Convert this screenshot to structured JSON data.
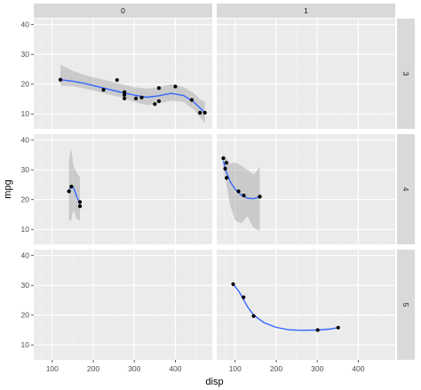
{
  "chart_data": {
    "type": "scatter",
    "subtype": "facet_grid scatter with loess smooth and confidence band",
    "xlabel": "disp",
    "ylabel": "mpg",
    "xlim": [
      55,
      490
    ],
    "ylim": [
      5,
      42
    ],
    "x_ticks": [
      100,
      200,
      300,
      400
    ],
    "y_ticks": [
      10,
      20,
      30,
      40
    ],
    "facet_cols": {
      "variable": "am",
      "levels": [
        "0",
        "1"
      ]
    },
    "facet_rows": {
      "variable": "gear",
      "levels": [
        "3",
        "4",
        "5"
      ]
    },
    "grid": true,
    "colors": {
      "panel_bg": "#ebebeb",
      "grid_major": "#ffffff",
      "grid_minor": "#f4f4f4",
      "strip_bg": "#d9d9d9",
      "points": "#000000",
      "smooth": "#3366ff",
      "ribbon": "#999999"
    },
    "panels": [
      {
        "col": "0",
        "row": "3",
        "points": [
          [
            120,
            21.5
          ],
          [
            225,
            18.1
          ],
          [
            258,
            21.4
          ],
          [
            276,
            17.3
          ],
          [
            276,
            16.4
          ],
          [
            276,
            15.2
          ],
          [
            304,
            15.2
          ],
          [
            318,
            15.5
          ],
          [
            350,
            13.3
          ],
          [
            360,
            14.3
          ],
          [
            360,
            18.7
          ],
          [
            400,
            19.2
          ],
          [
            440,
            14.7
          ],
          [
            460,
            10.4
          ],
          [
            472,
            10.4
          ]
        ],
        "smooth": [
          [
            120,
            21.5
          ],
          [
            150,
            21.0
          ],
          [
            180,
            20.2
          ],
          [
            210,
            19.2
          ],
          [
            240,
            18.2
          ],
          [
            270,
            17.2
          ],
          [
            300,
            16.3
          ],
          [
            330,
            15.6
          ],
          [
            360,
            16.1
          ],
          [
            390,
            16.9
          ],
          [
            420,
            16.2
          ],
          [
            445,
            14.0
          ],
          [
            460,
            12.0
          ],
          [
            472,
            10.4
          ]
        ],
        "band": [
          [
            120,
            19.5,
            26.5
          ],
          [
            150,
            19.3,
            24.5
          ],
          [
            180,
            18.5,
            23.0
          ],
          [
            210,
            17.5,
            22.0
          ],
          [
            240,
            16.5,
            21.0
          ],
          [
            270,
            15.5,
            20.0
          ],
          [
            300,
            14.0,
            19.0
          ],
          [
            330,
            13.0,
            18.5
          ],
          [
            360,
            13.5,
            19.0
          ],
          [
            390,
            14.5,
            20.0
          ],
          [
            420,
            14.0,
            19.0
          ],
          [
            445,
            11.5,
            17.0
          ],
          [
            460,
            9.0,
            15.0
          ],
          [
            472,
            7.0,
            14.0
          ]
        ]
      },
      {
        "col": "1",
        "row": "3",
        "points": [],
        "smooth": [],
        "band": []
      },
      {
        "col": "0",
        "row": "4",
        "points": [
          [
            140.8,
            22.8
          ],
          [
            146.7,
            24.4
          ],
          [
            167.6,
            19.2
          ],
          [
            167.6,
            17.8
          ]
        ],
        "smooth": [
          [
            140.8,
            22.8
          ],
          [
            146,
            24.6
          ],
          [
            152,
            24.0
          ],
          [
            160,
            21.0
          ],
          [
            167.6,
            18.5
          ]
        ],
        "band": [
          [
            140.8,
            13.0,
            33.0
          ],
          [
            146,
            13.0,
            37.5
          ],
          [
            152,
            16.5,
            31.5
          ],
          [
            160,
            13.5,
            29.0
          ],
          [
            167.6,
            13.0,
            27.5
          ]
        ]
      },
      {
        "col": "1",
        "row": "4",
        "points": [
          [
            71.1,
            33.9
          ],
          [
            75.7,
            30.4
          ],
          [
            78.7,
            32.4
          ],
          [
            79,
            27.3
          ],
          [
            108,
            22.8
          ],
          [
            121,
            21.4
          ],
          [
            160,
            21.0
          ],
          [
            160,
            21.0
          ]
        ],
        "smooth": [
          [
            71.1,
            33.0
          ],
          [
            78,
            29.5
          ],
          [
            88,
            26.0
          ],
          [
            100,
            23.5
          ],
          [
            115,
            21.5
          ],
          [
            130,
            20.5
          ],
          [
            145,
            20.3
          ],
          [
            160,
            21.0
          ]
        ],
        "band": [
          [
            71.1,
            30.5,
            35.5
          ],
          [
            78,
            25.5,
            34.0
          ],
          [
            88,
            18.0,
            32.0
          ],
          [
            100,
            13.0,
            32.5
          ],
          [
            115,
            12.0,
            31.5
          ],
          [
            130,
            14.5,
            30.0
          ],
          [
            145,
            10.5,
            28.5
          ],
          [
            160,
            9.5,
            31.0
          ]
        ]
      },
      {
        "col": "0",
        "row": "5",
        "points": [],
        "smooth": [],
        "band": []
      },
      {
        "col": "1",
        "row": "5",
        "points": [
          [
            95.1,
            30.4
          ],
          [
            120.3,
            26.0
          ],
          [
            145,
            19.7
          ],
          [
            301,
            15.0
          ],
          [
            351,
            15.8
          ]
        ],
        "smooth": [
          [
            95.1,
            30.4
          ],
          [
            110,
            27.8
          ],
          [
            130,
            22.8
          ],
          [
            145,
            20.0
          ],
          [
            170,
            17.5
          ],
          [
            200,
            15.9
          ],
          [
            230,
            15.1
          ],
          [
            260,
            14.9
          ],
          [
            301,
            15.0
          ],
          [
            330,
            15.3
          ],
          [
            351,
            15.8
          ]
        ],
        "band": []
      }
    ]
  }
}
